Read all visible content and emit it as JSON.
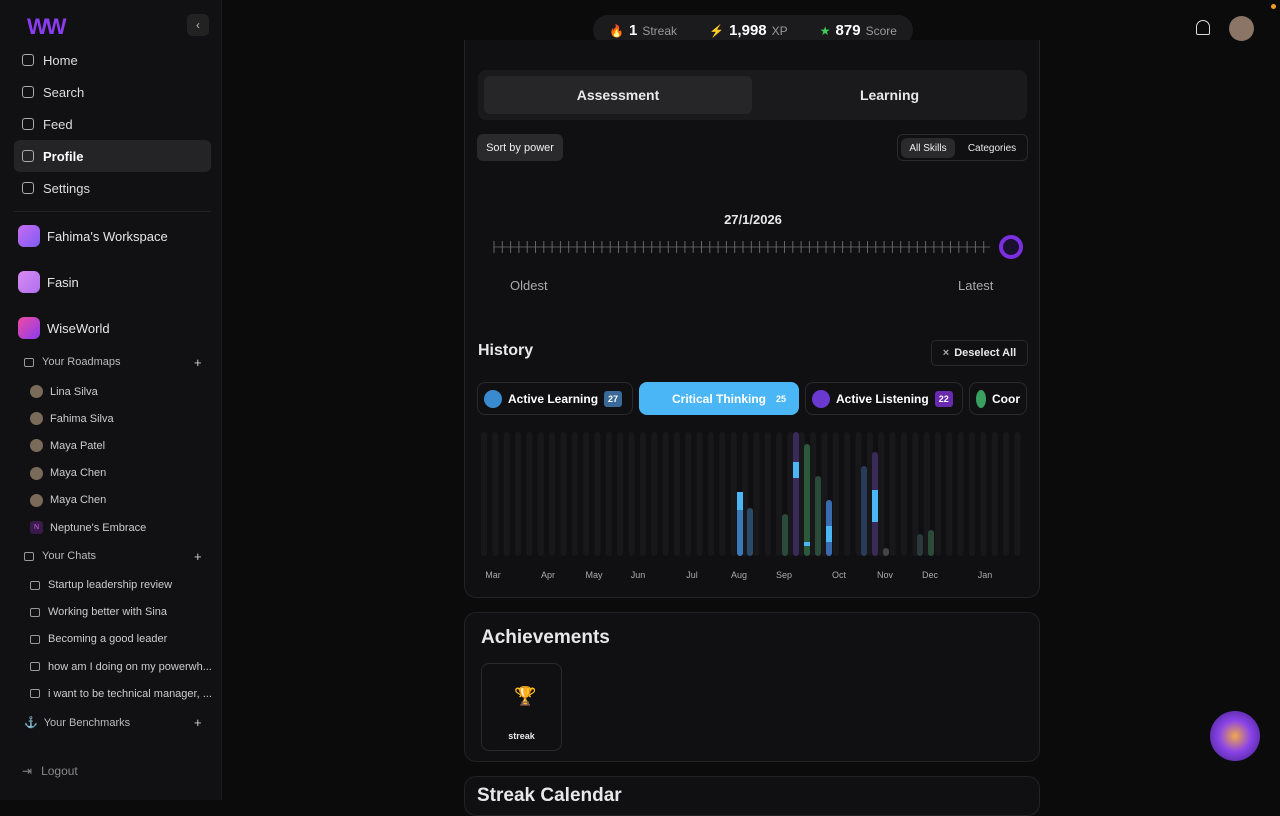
{
  "header": {
    "streak": {
      "value": "1",
      "label": "Streak"
    },
    "xp": {
      "value": "1,998",
      "label": "XP"
    },
    "score": {
      "value": "879",
      "label": "Score"
    }
  },
  "sidebar": {
    "nav": [
      "Home",
      "Search",
      "Feed",
      "Profile",
      "Settings"
    ],
    "workspaces": [
      "Fahima's Workspace",
      "Fasin",
      "WiseWorld"
    ],
    "roadmaps": {
      "title": "Your Roadmaps",
      "items": [
        "Lina Silva",
        "Fahima Silva",
        "Maya Patel",
        "Maya Chen",
        "Maya Chen",
        "Neptune's Embrace"
      ],
      "initial": "N"
    },
    "chats": {
      "title": "Your Chats",
      "items": [
        "Startup leadership review",
        "Working better with Sina",
        "Becoming a good leader",
        "how am I doing on my powerwh...",
        "i want to be technical manager, ..."
      ]
    },
    "benchmarks": "Your Benchmarks",
    "logout": "Logout"
  },
  "tabs": [
    "Assessment",
    "Learning"
  ],
  "controls": {
    "sort": "Sort by power",
    "toggle": [
      "All Skills",
      "Categories"
    ]
  },
  "timeline": {
    "date": "27/1/2026",
    "start": "Oldest",
    "end": "Latest"
  },
  "history": {
    "title": "History",
    "deselect": "Deselect All",
    "chips": [
      {
        "label": "Active Learning",
        "count": 27
      },
      {
        "label": "Critical Thinking",
        "count": 25
      },
      {
        "label": "Active Listening",
        "count": 22
      },
      {
        "label": "Coor"
      }
    ],
    "months": [
      "Mar",
      "Apr",
      "May",
      "Jun",
      "Jul",
      "Aug",
      "Sep",
      "Oct",
      "Nov",
      "Dec",
      "Jan"
    ]
  },
  "achievements": {
    "title": "Achievements",
    "items": [
      "streak"
    ]
  },
  "streak_calendar": {
    "title": "Streak Calendar"
  }
}
